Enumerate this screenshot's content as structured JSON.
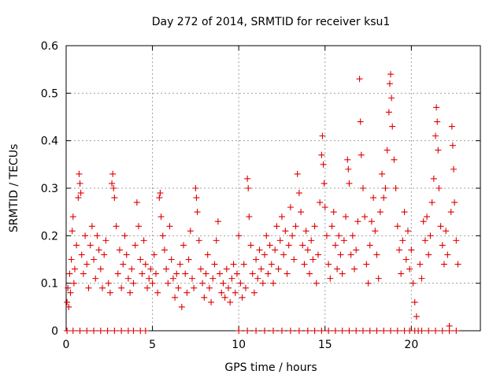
{
  "chart_data": {
    "type": "scatter",
    "title": "Day 272 of 2014, SRMTID for receiver ksu1",
    "xlabel": "GPS time / hours",
    "ylabel": "SRMTID / TECUs",
    "xlim": [
      0,
      24
    ],
    "ylim": [
      0,
      0.6
    ],
    "xticks": [
      0,
      5,
      10,
      15,
      20
    ],
    "yticks": [
      0,
      0.1,
      0.2,
      0.3,
      0.4,
      0.5,
      0.6
    ],
    "ytick_labels": [
      "0",
      "0.1",
      "0.2",
      "0.3",
      "0.4",
      "0.5",
      "0.6"
    ],
    "grid": true,
    "marker": "+",
    "color": "#e00000",
    "series": [
      {
        "name": "SRMTID",
        "points": [
          [
            0.05,
            0.06
          ],
          [
            0.1,
            0.09
          ],
          [
            0.15,
            0.05
          ],
          [
            0.2,
            0.12
          ],
          [
            0.25,
            0.08
          ],
          [
            0.3,
            0.15
          ],
          [
            0.35,
            0.21
          ],
          [
            0.4,
            0.24
          ],
          [
            0.45,
            0.1
          ],
          [
            0.5,
            0.13
          ],
          [
            0.6,
            0.18
          ],
          [
            0.7,
            0.28
          ],
          [
            0.75,
            0.33
          ],
          [
            0.8,
            0.31
          ],
          [
            0.85,
            0.29
          ],
          [
            0.9,
            0.16
          ],
          [
            1.0,
            0.12
          ],
          [
            1.1,
            0.2
          ],
          [
            1.2,
            0.14
          ],
          [
            1.3,
            0.09
          ],
          [
            1.4,
            0.18
          ],
          [
            1.5,
            0.22
          ],
          [
            1.6,
            0.15
          ],
          [
            1.7,
            0.11
          ],
          [
            1.8,
            0.2
          ],
          [
            1.9,
            0.17
          ],
          [
            2.0,
            0.13
          ],
          [
            2.1,
            0.09
          ],
          [
            2.2,
            0.16
          ],
          [
            2.3,
            0.19
          ],
          [
            2.45,
            0.1
          ],
          [
            2.55,
            0.08
          ],
          [
            2.65,
            0.31
          ],
          [
            2.7,
            0.33
          ],
          [
            2.75,
            0.3
          ],
          [
            2.8,
            0.28
          ],
          [
            2.9,
            0.22
          ],
          [
            3.0,
            0.12
          ],
          [
            3.1,
            0.17
          ],
          [
            3.2,
            0.09
          ],
          [
            3.3,
            0.14
          ],
          [
            3.4,
            0.2
          ],
          [
            3.5,
            0.16
          ],
          [
            3.6,
            0.11
          ],
          [
            3.7,
            0.08
          ],
          [
            3.8,
            0.13
          ],
          [
            3.9,
            0.1
          ],
          [
            4.0,
            0.18
          ],
          [
            4.1,
            0.27
          ],
          [
            4.2,
            0.22
          ],
          [
            4.3,
            0.15
          ],
          [
            4.4,
            0.12
          ],
          [
            4.5,
            0.19
          ],
          [
            4.6,
            0.14
          ],
          [
            4.7,
            0.09
          ],
          [
            4.8,
            0.11
          ],
          [
            4.9,
            0.13
          ],
          [
            5.0,
            0.1
          ],
          [
            5.1,
            0.16
          ],
          [
            5.2,
            0.12
          ],
          [
            5.3,
            0.08
          ],
          [
            5.4,
            0.28
          ],
          [
            5.45,
            0.29
          ],
          [
            5.5,
            0.24
          ],
          [
            5.6,
            0.2
          ],
          [
            5.7,
            0.17
          ],
          [
            5.8,
            0.13
          ],
          [
            5.9,
            0.1
          ],
          [
            6.0,
            0.22
          ],
          [
            6.1,
            0.15
          ],
          [
            6.2,
            0.11
          ],
          [
            6.3,
            0.07
          ],
          [
            6.4,
            0.12
          ],
          [
            6.5,
            0.09
          ],
          [
            6.6,
            0.14
          ],
          [
            6.7,
            0.05
          ],
          [
            6.8,
            0.18
          ],
          [
            6.9,
            0.12
          ],
          [
            7.0,
            0.08
          ],
          [
            7.1,
            0.15
          ],
          [
            7.2,
            0.21
          ],
          [
            7.3,
            0.11
          ],
          [
            7.4,
            0.09
          ],
          [
            7.5,
            0.3
          ],
          [
            7.55,
            0.28
          ],
          [
            7.6,
            0.25
          ],
          [
            7.7,
            0.19
          ],
          [
            7.8,
            0.13
          ],
          [
            7.9,
            0.1
          ],
          [
            8.0,
            0.07
          ],
          [
            8.1,
            0.12
          ],
          [
            8.2,
            0.16
          ],
          [
            8.3,
            0.09
          ],
          [
            8.4,
            0.06
          ],
          [
            8.5,
            0.11
          ],
          [
            8.6,
            0.14
          ],
          [
            8.7,
            0.19
          ],
          [
            8.8,
            0.23
          ],
          [
            8.9,
            0.12
          ],
          [
            9.0,
            0.08
          ],
          [
            9.1,
            0.1
          ],
          [
            9.2,
            0.07
          ],
          [
            9.3,
            0.13
          ],
          [
            9.4,
            0.09
          ],
          [
            9.5,
            0.06
          ],
          [
            9.6,
            0.11
          ],
          [
            9.7,
            0.14
          ],
          [
            9.8,
            0.08
          ],
          [
            9.9,
            0.12
          ],
          [
            10.0,
            0.2
          ],
          [
            10.1,
            0.1
          ],
          [
            10.2,
            0.07
          ],
          [
            10.3,
            0.14
          ],
          [
            10.4,
            0.09
          ],
          [
            10.5,
            0.32
          ],
          [
            10.55,
            0.3
          ],
          [
            10.6,
            0.24
          ],
          [
            10.7,
            0.18
          ],
          [
            10.8,
            0.12
          ],
          [
            10.9,
            0.08
          ],
          [
            11.0,
            0.15
          ],
          [
            11.1,
            0.11
          ],
          [
            11.2,
            0.17
          ],
          [
            11.3,
            0.13
          ],
          [
            11.4,
            0.1
          ],
          [
            11.5,
            0.16
          ],
          [
            11.6,
            0.2
          ],
          [
            11.7,
            0.12
          ],
          [
            11.8,
            0.18
          ],
          [
            11.9,
            0.14
          ],
          [
            12.0,
            0.1
          ],
          [
            12.1,
            0.17
          ],
          [
            12.2,
            0.22
          ],
          [
            12.3,
            0.13
          ],
          [
            12.4,
            0.19
          ],
          [
            12.5,
            0.24
          ],
          [
            12.6,
            0.16
          ],
          [
            12.7,
            0.21
          ],
          [
            12.8,
            0.12
          ],
          [
            12.9,
            0.18
          ],
          [
            13.0,
            0.26
          ],
          [
            13.1,
            0.2
          ],
          [
            13.2,
            0.15
          ],
          [
            13.3,
            0.22
          ],
          [
            13.4,
            0.33
          ],
          [
            13.5,
            0.29
          ],
          [
            13.6,
            0.25
          ],
          [
            13.7,
            0.18
          ],
          [
            13.8,
            0.14
          ],
          [
            13.9,
            0.21
          ],
          [
            14.0,
            0.17
          ],
          [
            14.1,
            0.12
          ],
          [
            14.2,
            0.19
          ],
          [
            14.3,
            0.15
          ],
          [
            14.4,
            0.22
          ],
          [
            14.5,
            0.1
          ],
          [
            14.6,
            0.16
          ],
          [
            14.7,
            0.27
          ],
          [
            14.8,
            0.37
          ],
          [
            14.85,
            0.41
          ],
          [
            14.9,
            0.35
          ],
          [
            14.95,
            0.31
          ],
          [
            15.0,
            0.26
          ],
          [
            15.1,
            0.2
          ],
          [
            15.2,
            0.14
          ],
          [
            15.3,
            0.11
          ],
          [
            15.4,
            0.22
          ],
          [
            15.5,
            0.25
          ],
          [
            15.6,
            0.18
          ],
          [
            15.7,
            0.13
          ],
          [
            15.8,
            0.2
          ],
          [
            15.9,
            0.16
          ],
          [
            16.0,
            0.12
          ],
          [
            16.1,
            0.19
          ],
          [
            16.2,
            0.24
          ],
          [
            16.3,
            0.36
          ],
          [
            16.35,
            0.34
          ],
          [
            16.4,
            0.31
          ],
          [
            16.5,
            0.16
          ],
          [
            16.6,
            0.2
          ],
          [
            16.7,
            0.13
          ],
          [
            16.8,
            0.17
          ],
          [
            16.9,
            0.23
          ],
          [
            17.0,
            0.53
          ],
          [
            17.05,
            0.44
          ],
          [
            17.1,
            0.37
          ],
          [
            17.2,
            0.3
          ],
          [
            17.3,
            0.24
          ],
          [
            17.4,
            0.14
          ],
          [
            17.5,
            0.1
          ],
          [
            17.6,
            0.18
          ],
          [
            17.7,
            0.23
          ],
          [
            17.8,
            0.28
          ],
          [
            17.9,
            0.21
          ],
          [
            18.0,
            0.16
          ],
          [
            18.1,
            0.11
          ],
          [
            18.2,
            0.25
          ],
          [
            18.3,
            0.33
          ],
          [
            18.4,
            0.28
          ],
          [
            18.5,
            0.3
          ],
          [
            18.6,
            0.38
          ],
          [
            18.7,
            0.46
          ],
          [
            18.75,
            0.52
          ],
          [
            18.8,
            0.54
          ],
          [
            18.85,
            0.49
          ],
          [
            18.9,
            0.43
          ],
          [
            19.0,
            0.36
          ],
          [
            19.1,
            0.3
          ],
          [
            19.2,
            0.22
          ],
          [
            19.3,
            0.17
          ],
          [
            19.4,
            0.12
          ],
          [
            19.5,
            0.19
          ],
          [
            19.6,
            0.25
          ],
          [
            19.7,
            0.15
          ],
          [
            19.8,
            0.21
          ],
          [
            19.9,
            0.13
          ],
          [
            20.0,
            0.17
          ],
          [
            20.1,
            0.1
          ],
          [
            20.2,
            0.06
          ],
          [
            20.3,
            0.03
          ],
          [
            20.5,
            0.14
          ],
          [
            20.6,
            0.11
          ],
          [
            20.7,
            0.23
          ],
          [
            20.8,
            0.19
          ],
          [
            20.9,
            0.24
          ],
          [
            21.0,
            0.16
          ],
          [
            21.1,
            0.2
          ],
          [
            21.2,
            0.27
          ],
          [
            21.3,
            0.32
          ],
          [
            21.4,
            0.41
          ],
          [
            21.45,
            0.47
          ],
          [
            21.5,
            0.44
          ],
          [
            21.55,
            0.38
          ],
          [
            21.6,
            0.3
          ],
          [
            21.7,
            0.22
          ],
          [
            21.8,
            0.18
          ],
          [
            21.9,
            0.14
          ],
          [
            22.0,
            0.21
          ],
          [
            22.1,
            0.16
          ],
          [
            22.2,
            0.01
          ],
          [
            22.3,
            0.25
          ],
          [
            22.35,
            0.43
          ],
          [
            22.4,
            0.39
          ],
          [
            22.45,
            0.34
          ],
          [
            22.5,
            0.27
          ],
          [
            22.6,
            0.19
          ],
          [
            22.7,
            0.14
          ]
        ]
      }
    ],
    "zero_markers_x": [
      0.05,
      0.4,
      0.8,
      1.2,
      1.6,
      2.0,
      2.4,
      2.8,
      3.2,
      3.6,
      3.9,
      4.3,
      4.6,
      10.0,
      10.5,
      11.0,
      11.5,
      12.0,
      12.5,
      13.0,
      13.5,
      14.0,
      14.4,
      14.8,
      15.2,
      15.6,
      16.0,
      16.4,
      16.8,
      17.2,
      17.6,
      18.0,
      18.4,
      18.8,
      19.2,
      19.6,
      19.9,
      20.2,
      20.4,
      20.6,
      21.0,
      21.4,
      21.8,
      22.2,
      22.6
    ]
  }
}
